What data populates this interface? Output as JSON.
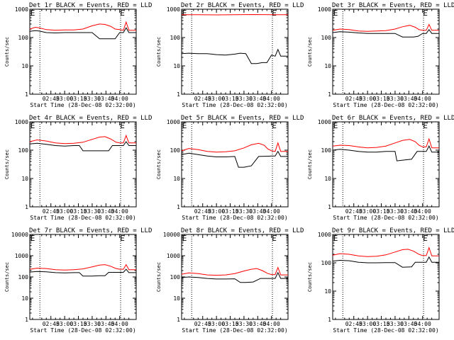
{
  "chart_data": [
    {
      "type": "line",
      "title": "Det 1r BLACK = Events, RED = LLD",
      "xlabel": "Start Time (28-Dec-08 02:32:00)",
      "ylabel": "Counts/sec",
      "yscale": "log",
      "ylim": [
        1,
        1000
      ],
      "yticks": [
        "1",
        "10",
        "100",
        "1000"
      ],
      "xticks": [
        "02:45",
        "03:00",
        "03:15",
        "03:30",
        "03:45",
        "04:00"
      ],
      "xlim_minutes": [
        142,
        258
      ],
      "vlines_minutes": [
        153,
        241
      ],
      "marker_label": "E",
      "marker_minutes": 243,
      "series": [
        {
          "color": "#000000",
          "base": 150,
          "x": [
            142,
            148,
            152,
            160,
            170,
            180,
            190,
            200,
            210,
            218,
            222,
            230,
            235,
            240,
            244,
            247,
            250,
            254,
            258
          ],
          "values": [
            165,
            175,
            170,
            150,
            145,
            150,
            150,
            150,
            150,
            90,
            90,
            90,
            90,
            150,
            150,
            220,
            150,
            150,
            150
          ]
        },
        {
          "color": "#ff0000",
          "x": [
            142,
            148,
            152,
            160,
            170,
            180,
            190,
            200,
            210,
            218,
            224,
            230,
            235,
            240,
            244,
            247,
            250,
            254,
            258
          ],
          "values": [
            200,
            230,
            220,
            190,
            180,
            185,
            185,
            200,
            260,
            300,
            290,
            250,
            200,
            190,
            180,
            350,
            180,
            180,
            180
          ]
        }
      ]
    },
    {
      "type": "line",
      "title": "Det 2r BLACK = Events, RED = LLD",
      "xlabel": "Start Time (28-Dec-08 02:32:00)",
      "ylabel": "Counts/sec",
      "yscale": "log",
      "ylim": [
        1,
        1000
      ],
      "yticks": [
        "1",
        "10",
        "100",
        "1000"
      ],
      "xticks": [
        "02:45",
        "03:00",
        "03:15",
        "03:30",
        "03:45",
        "04:00"
      ],
      "xlim_minutes": [
        142,
        258
      ],
      "vlines_minutes": [
        153,
        241
      ],
      "marker_label": "E",
      "marker_minutes": 243,
      "series": [
        {
          "color": "#000000",
          "x": [
            142,
            150,
            160,
            170,
            180,
            190,
            200,
            206,
            212,
            218,
            224,
            230,
            235,
            240,
            244,
            247,
            250,
            254,
            258
          ],
          "values": [
            27,
            28,
            27,
            27,
            25,
            24,
            26,
            28,
            27,
            12,
            12,
            13,
            13,
            24,
            22,
            38,
            22,
            22,
            22
          ]
        },
        {
          "color": "#ff0000",
          "x": [
            142,
            160,
            180,
            200,
            220,
            240,
            258
          ],
          "values": [
            640,
            640,
            630,
            640,
            650,
            640,
            640
          ]
        }
      ]
    },
    {
      "type": "line",
      "title": "Det 3r BLACK = Events, RED = LLD",
      "xlabel": "Start Time (28-Dec-08 02:32:00)",
      "ylabel": "Counts/sec",
      "yscale": "log",
      "ylim": [
        1,
        1000
      ],
      "yticks": [
        "1",
        "10",
        "100",
        "1000"
      ],
      "xticks": [
        "02:45",
        "03:00",
        "03:15",
        "03:30",
        "03:45",
        "04:00"
      ],
      "xlim_minutes": [
        142,
        258
      ],
      "vlines_minutes": [
        153,
        241
      ],
      "marker_label": "E",
      "marker_minutes": 243,
      "series": [
        {
          "color": "#000000",
          "x": [
            142,
            150,
            160,
            170,
            180,
            190,
            200,
            210,
            218,
            222,
            230,
            235,
            240,
            244,
            247,
            250,
            254,
            258
          ],
          "values": [
            150,
            160,
            155,
            145,
            140,
            140,
            140,
            140,
            105,
            105,
            105,
            110,
            140,
            140,
            190,
            140,
            140,
            140
          ]
        },
        {
          "color": "#ff0000",
          "x": [
            142,
            150,
            160,
            170,
            180,
            190,
            200,
            210,
            218,
            226,
            232,
            236,
            240,
            244,
            247,
            250,
            254,
            258
          ],
          "values": [
            180,
            200,
            190,
            170,
            165,
            170,
            175,
            200,
            240,
            270,
            230,
            190,
            180,
            180,
            290,
            180,
            180,
            180
          ]
        }
      ]
    },
    {
      "type": "line",
      "title": "Det 4r BLACK = Events, RED = LLD",
      "xlabel": "Start Time (28-Dec-08 02:32:00)",
      "ylabel": "Counts/sec",
      "yscale": "log",
      "ylim": [
        1,
        1000
      ],
      "yticks": [
        "1",
        "10",
        "100",
        "1000"
      ],
      "xticks": [
        "02:45",
        "03:00",
        "03:15",
        "03:30",
        "03:45",
        "04:00"
      ],
      "xlim_minutes": [
        142,
        258
      ],
      "vlines_minutes": [
        153,
        241
      ],
      "marker_label": "E",
      "marker_minutes": 243,
      "series": [
        {
          "color": "#000000",
          "x": [
            142,
            150,
            160,
            170,
            180,
            190,
            196,
            200,
            210,
            220,
            228,
            232,
            240,
            244,
            247,
            250,
            254,
            258
          ],
          "values": [
            165,
            175,
            160,
            145,
            140,
            145,
            145,
            95,
            95,
            95,
            95,
            145,
            145,
            145,
            200,
            145,
            145,
            145
          ]
        },
        {
          "color": "#ff0000",
          "x": [
            142,
            150,
            160,
            170,
            180,
            190,
            200,
            210,
            218,
            224,
            230,
            236,
            240,
            244,
            247,
            250,
            254,
            258
          ],
          "values": [
            200,
            230,
            210,
            180,
            170,
            175,
            190,
            240,
            290,
            300,
            250,
            190,
            180,
            180,
            330,
            180,
            180,
            180
          ]
        }
      ]
    },
    {
      "type": "line",
      "title": "Det 5r BLACK = Events, RED = LLD",
      "xlabel": "Start Time (28-Dec-08 02:32:00)",
      "ylabel": "Counts/sec",
      "yscale": "log",
      "ylim": [
        1,
        1000
      ],
      "yticks": [
        "1",
        "10",
        "100",
        "1000"
      ],
      "xticks": [
        "02:45",
        "03:00",
        "03:15",
        "03:30",
        "03:45",
        "04:00"
      ],
      "xlim_minutes": [
        142,
        258
      ],
      "vlines_minutes": [
        153,
        241
      ],
      "marker_label": "E",
      "marker_minutes": 243,
      "series": [
        {
          "color": "#000000",
          "x": [
            142,
            150,
            160,
            170,
            180,
            190,
            200,
            204,
            210,
            218,
            226,
            240,
            244,
            247,
            250,
            254,
            258
          ],
          "values": [
            70,
            78,
            70,
            62,
            58,
            58,
            60,
            25,
            25,
            28,
            60,
            62,
            62,
            90,
            60,
            60,
            60
          ]
        },
        {
          "color": "#ff0000",
          "x": [
            142,
            150,
            160,
            170,
            180,
            190,
            200,
            210,
            218,
            226,
            232,
            236,
            240,
            244,
            247,
            250,
            254,
            258
          ],
          "values": [
            95,
            115,
            105,
            90,
            85,
            88,
            95,
            120,
            155,
            175,
            150,
            110,
            95,
            90,
            180,
            90,
            90,
            90
          ]
        }
      ]
    },
    {
      "type": "line",
      "title": "Det 6r BLACK = Events, RED = LLD",
      "xlabel": "Start Time (28-Dec-08 02:32:00)",
      "ylabel": "Counts/sec",
      "yscale": "log",
      "ylim": [
        1,
        1000
      ],
      "yticks": [
        "1",
        "10",
        "100",
        "1000"
      ],
      "xticks": [
        "02:45",
        "03:00",
        "03:15",
        "03:30",
        "03:45",
        "04:00"
      ],
      "xlim_minutes": [
        142,
        258
      ],
      "vlines_minutes": [
        153,
        241
      ],
      "marker_label": "E",
      "marker_minutes": 243,
      "series": [
        {
          "color": "#000000",
          "x": [
            142,
            150,
            160,
            170,
            180,
            190,
            200,
            210,
            212,
            220,
            228,
            234,
            240,
            244,
            247,
            250,
            254,
            258
          ],
          "values": [
            100,
            108,
            100,
            90,
            85,
            85,
            90,
            90,
            42,
            45,
            48,
            90,
            90,
            90,
            140,
            85,
            85,
            85
          ]
        },
        {
          "color": "#ff0000",
          "x": [
            142,
            150,
            160,
            170,
            180,
            190,
            200,
            210,
            218,
            226,
            232,
            236,
            240,
            244,
            247,
            250,
            254,
            258
          ],
          "values": [
            140,
            150,
            145,
            130,
            120,
            125,
            140,
            180,
            220,
            240,
            200,
            150,
            130,
            130,
            250,
            120,
            120,
            120
          ]
        }
      ]
    },
    {
      "type": "line",
      "title": "Det 7r BLACK = Events, RED = LLD",
      "xlabel": "Start Time (28-Dec-08 02:32:00)",
      "ylabel": "Counts/sec",
      "yscale": "log",
      "ylim": [
        1,
        10000
      ],
      "yticks": [
        "1",
        "10",
        "100",
        "1000",
        "10000"
      ],
      "xticks": [
        "02:45",
        "03:00",
        "03:15",
        "03:30",
        "03:45",
        "04:00"
      ],
      "xlim_minutes": [
        142,
        258
      ],
      "vlines_minutes": [
        153,
        241
      ],
      "marker_label": "E",
      "marker_minutes": 243,
      "series": [
        {
          "color": "#000000",
          "x": [
            142,
            150,
            160,
            170,
            180,
            190,
            196,
            200,
            210,
            218,
            224,
            228,
            240,
            244,
            247,
            250,
            254,
            258
          ],
          "values": [
            170,
            180,
            175,
            160,
            155,
            160,
            160,
            110,
            110,
            115,
            115,
            165,
            165,
            165,
            230,
            160,
            160,
            160
          ]
        },
        {
          "color": "#ff0000",
          "x": [
            142,
            150,
            160,
            170,
            180,
            190,
            200,
            210,
            218,
            224,
            230,
            236,
            240,
            244,
            247,
            250,
            254,
            258
          ],
          "values": [
            230,
            260,
            250,
            220,
            210,
            220,
            240,
            300,
            360,
            380,
            320,
            250,
            230,
            230,
            380,
            220,
            220,
            220
          ]
        }
      ]
    },
    {
      "type": "line",
      "title": "Det 8r BLACK = Events, RED = LLD",
      "xlabel": "Start Time (28-Dec-08 02:32:00)",
      "ylabel": "Counts/sec",
      "yscale": "log",
      "ylim": [
        1,
        10000
      ],
      "yticks": [
        "1",
        "10",
        "100",
        "1000",
        "10000"
      ],
      "xticks": [
        "02:45",
        "03:00",
        "03:15",
        "03:30",
        "03:45",
        "04:00"
      ],
      "xlim_minutes": [
        142,
        258
      ],
      "vlines_minutes": [
        153,
        241
      ],
      "marker_label": "E",
      "marker_minutes": 243,
      "series": [
        {
          "color": "#000000",
          "x": [
            142,
            150,
            160,
            170,
            180,
            190,
            200,
            206,
            212,
            220,
            228,
            240,
            244,
            247,
            250,
            254,
            258
          ],
          "values": [
            95,
            100,
            95,
            85,
            80,
            80,
            82,
            55,
            55,
            58,
            85,
            85,
            85,
            160,
            85,
            85,
            85
          ]
        },
        {
          "color": "#ff0000",
          "x": [
            142,
            150,
            160,
            170,
            180,
            190,
            200,
            210,
            218,
            224,
            230,
            236,
            240,
            244,
            247,
            250,
            254,
            258
          ],
          "values": [
            135,
            155,
            145,
            125,
            120,
            125,
            145,
            190,
            230,
            250,
            200,
            145,
            130,
            130,
            280,
            125,
            125,
            125
          ]
        }
      ]
    },
    {
      "type": "line",
      "title": "Det 9r BLACK = Events, RED = LLD",
      "xlabel": "Start Time (28-Dec-08 02:32:00)",
      "ylabel": "Counts/sec",
      "yscale": "log",
      "ylim": [
        1,
        1000
      ],
      "yticks": [
        "1",
        "10",
        "100",
        "1000"
      ],
      "xticks": [
        "02:45",
        "03:00",
        "03:15",
        "03:30",
        "03:45",
        "04:00"
      ],
      "xlim_minutes": [
        142,
        258
      ],
      "vlines_minutes": [
        153,
        241
      ],
      "marker_label": "E",
      "marker_minutes": 243,
      "series": [
        {
          "color": "#000000",
          "x": [
            142,
            150,
            160,
            170,
            180,
            190,
            200,
            210,
            218,
            228,
            232,
            240,
            244,
            247,
            250,
            254,
            258
          ],
          "values": [
            115,
            122,
            118,
            105,
            100,
            100,
            102,
            102,
            70,
            72,
            105,
            105,
            105,
            160,
            105,
            105,
            105
          ]
        },
        {
          "color": "#ff0000",
          "x": [
            142,
            150,
            160,
            170,
            180,
            190,
            200,
            210,
            218,
            224,
            230,
            236,
            240,
            244,
            247,
            250,
            254,
            258
          ],
          "values": [
            185,
            210,
            200,
            175,
            165,
            170,
            190,
            240,
            290,
            300,
            260,
            200,
            180,
            180,
            340,
            175,
            175,
            175
          ]
        }
      ]
    }
  ]
}
